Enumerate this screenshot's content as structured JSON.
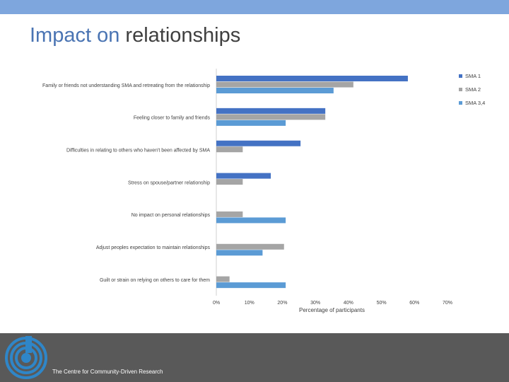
{
  "colors": {
    "top_bar": "#7ea6dd",
    "title_accent": "#4a74b3",
    "title_dark": "#3f3f3f",
    "footer_bg": "#595959",
    "logo": "#2f86c8"
  },
  "slide": {
    "title_part1": "Impact on",
    "title_part2": "relationships"
  },
  "footer": {
    "org_name": "The Centre for Community-Driven Research",
    "logo_icon": "concentric-circles-logo-icon"
  },
  "chart_data": {
    "type": "bar",
    "orientation": "horizontal",
    "title": "",
    "xlabel": "Percentage of participants",
    "ylabel": "",
    "xlim": [
      0,
      70
    ],
    "xticks": [
      0,
      10,
      20,
      30,
      40,
      50,
      60,
      70
    ],
    "xtick_labels": [
      "0%",
      "10%",
      "20%",
      "30%",
      "40%",
      "50%",
      "60%",
      "70%"
    ],
    "grid": false,
    "legend_position": "top-right",
    "categories": [
      "Family or friends not understanding SMA and retreating from the relationship",
      "Feeling closer to family and friends",
      "Difficulties in relating to others who haven't been affected by SMA",
      "Stress on spouse/partner relationship",
      "No impact on personal relationships",
      "Adjust peoples expectation to maintain relationships",
      "Guilt or strain on relying on others to care for them"
    ],
    "series": [
      {
        "name": "SMA 1",
        "color": "#4472c4",
        "values": [
          58,
          33,
          25.5,
          16.5,
          null,
          null,
          null
        ]
      },
      {
        "name": "SMA 2",
        "color": "#a5a5a5",
        "values": [
          41.5,
          33,
          8,
          8,
          8,
          20.5,
          4
        ]
      },
      {
        "name": "SMA 3,4",
        "color": "#5b9bd5",
        "values": [
          35.5,
          21,
          null,
          null,
          21,
          14,
          21
        ]
      }
    ]
  }
}
